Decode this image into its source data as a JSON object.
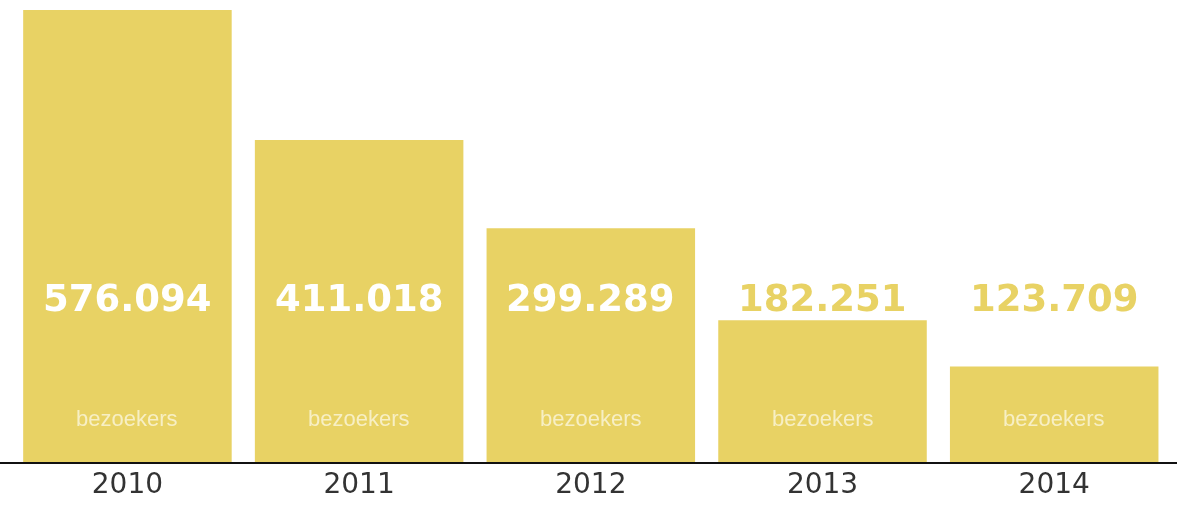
{
  "chart_data": {
    "type": "bar",
    "categories": [
      "2010",
      "2011",
      "2012",
      "2013",
      "2014"
    ],
    "values": [
      576094,
      411018,
      299289,
      182251,
      123709
    ],
    "value_labels": [
      "576.094",
      "411.018",
      "299.289",
      "182.251",
      "123.709"
    ],
    "color": "#e8d264",
    "annotations": [
      "bezoekers",
      "bezoekers",
      "bezoekers",
      "bezoekers",
      "bezoekers"
    ],
    "grid": false,
    "legend": false
  }
}
